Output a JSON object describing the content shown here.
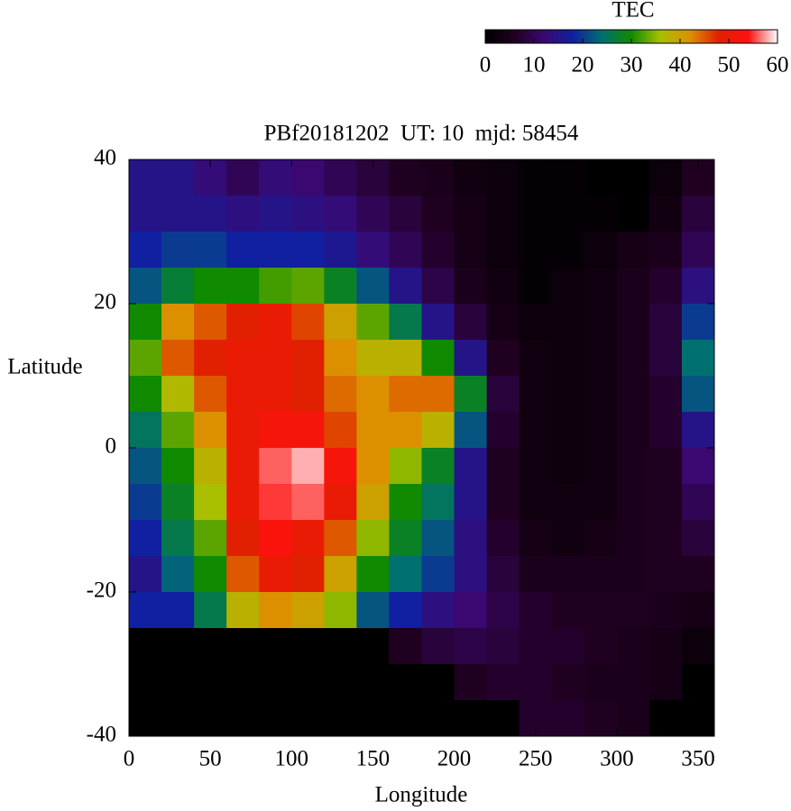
{
  "chart_data": {
    "type": "heatmap",
    "title": "PBf20181202  UT: 10  mjd: 58454",
    "xlabel": "Longitude",
    "ylabel": "Latitude",
    "xlim": [
      0,
      360
    ],
    "xticks": [
      0,
      50,
      100,
      150,
      200,
      250,
      300,
      350
    ],
    "ylim": [
      -40,
      40
    ],
    "yticks": [
      -40,
      -20,
      0,
      20,
      40
    ],
    "x": [
      10,
      30,
      50,
      70,
      90,
      110,
      130,
      150,
      170,
      190,
      210,
      230,
      250,
      270,
      290,
      310,
      330,
      350
    ],
    "y": [
      37.5,
      32.5,
      27.5,
      22.5,
      17.5,
      12.5,
      7.5,
      2.5,
      -2.5,
      -7.5,
      -12.5,
      -17.5,
      -22.5,
      -27.5,
      -32.5,
      -37.5
    ],
    "z": [
      [
        15,
        15,
        13,
        10,
        13,
        12,
        10,
        8,
        6,
        5,
        3,
        2,
        1,
        1,
        0,
        0,
        2,
        6
      ],
      [
        15,
        15,
        15,
        14,
        15,
        14,
        13,
        10,
        8,
        6,
        4,
        2,
        1,
        1,
        1,
        0,
        3,
        8
      ],
      [
        18,
        20,
        20,
        18,
        18,
        18,
        16,
        13,
        10,
        7,
        4,
        2,
        1,
        1,
        2,
        4,
        5,
        10
      ],
      [
        22,
        27,
        30,
        30,
        32,
        33,
        28,
        22,
        15,
        9,
        5,
        3,
        1,
        2,
        3,
        5,
        7,
        14
      ],
      [
        30,
        42,
        45,
        48,
        50,
        46,
        40,
        33,
        26,
        15,
        8,
        4,
        2,
        2,
        3,
        5,
        8,
        20
      ],
      [
        33,
        45,
        48,
        50,
        50,
        48,
        42,
        38,
        38,
        30,
        15,
        6,
        3,
        2,
        3,
        5,
        8,
        24
      ],
      [
        30,
        37,
        45,
        50,
        50,
        48,
        44,
        42,
        44,
        44,
        28,
        8,
        3,
        2,
        3,
        5,
        7,
        22
      ],
      [
        25,
        33,
        42,
        50,
        52,
        52,
        46,
        42,
        42,
        38,
        22,
        7,
        3,
        2,
        3,
        5,
        7,
        15
      ],
      [
        22,
        30,
        38,
        50,
        56,
        58,
        52,
        42,
        35,
        28,
        15,
        6,
        3,
        2,
        3,
        5,
        6,
        12
      ],
      [
        20,
        28,
        36,
        50,
        55,
        56,
        50,
        40,
        30,
        25,
        15,
        6,
        3,
        3,
        3,
        5,
        6,
        10
      ],
      [
        18,
        26,
        33,
        48,
        53,
        50,
        45,
        35,
        28,
        22,
        14,
        7,
        4,
        3,
        4,
        5,
        6,
        8
      ],
      [
        15,
        23,
        30,
        45,
        50,
        48,
        40,
        30,
        24,
        20,
        14,
        8,
        5,
        5,
        5,
        5,
        6,
        6
      ],
      [
        18,
        18,
        26,
        38,
        42,
        40,
        35,
        22,
        18,
        14,
        12,
        9,
        7,
        6,
        6,
        6,
        5,
        4
      ],
      [
        0,
        0,
        0,
        0,
        0,
        0,
        0,
        0,
        6,
        8,
        9,
        8,
        7,
        7,
        6,
        5,
        4,
        2
      ],
      [
        0,
        0,
        0,
        0,
        0,
        0,
        0,
        0,
        0,
        0,
        6,
        7,
        7,
        6,
        5,
        5,
        4,
        0
      ],
      [
        0,
        0,
        0,
        0,
        0,
        0,
        0,
        0,
        0,
        0,
        0,
        0,
        7,
        7,
        6,
        5,
        0,
        0
      ]
    ],
    "colorbar": {
      "title": "TEC",
      "lim": [
        0,
        60
      ],
      "ticks": [
        0,
        10,
        20,
        30,
        40,
        50,
        60
      ],
      "colors": [
        "#000000",
        "#200020",
        "#3a0870",
        "#1020a0",
        "#007070",
        "#108a00",
        "#a8c000",
        "#dc9000",
        "#e02000",
        "#ff1010",
        "#ffffff"
      ]
    }
  }
}
